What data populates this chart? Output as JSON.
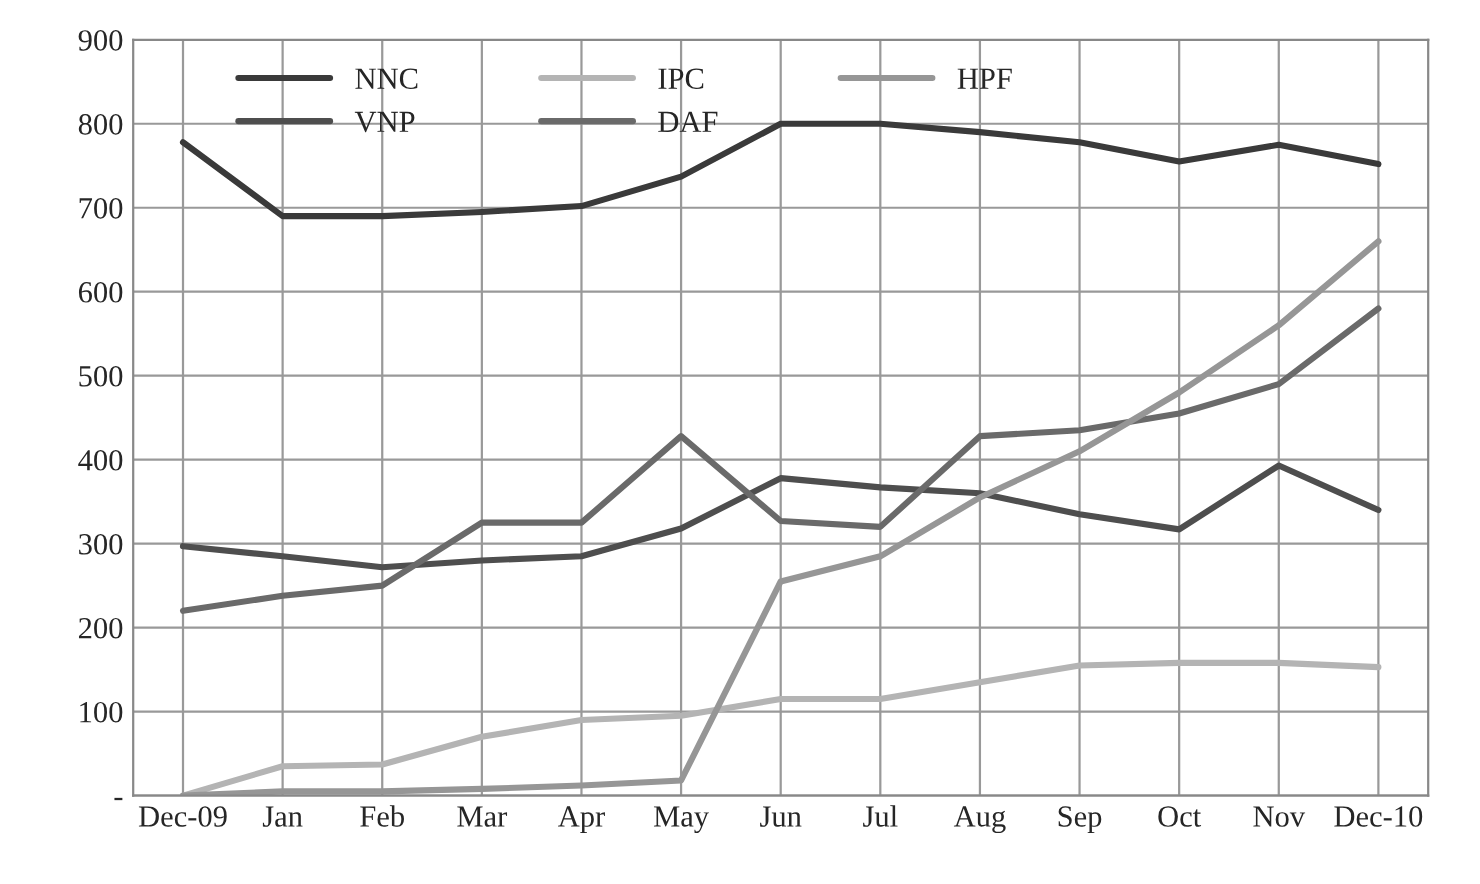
{
  "chart_data": {
    "type": "line",
    "categories": [
      "Dec-09",
      "Jan",
      "Feb",
      "Mar",
      "Apr",
      "May",
      "Jun",
      "Jul",
      "Aug",
      "Sep",
      "Oct",
      "Nov",
      "Dec-10"
    ],
    "series": [
      {
        "name": "NNC",
        "color": "#3a3a3a",
        "values": [
          778,
          690,
          690,
          695,
          702,
          737,
          800,
          800,
          790,
          778,
          755,
          775,
          752
        ]
      },
      {
        "name": "VNP",
        "color": "#4e4e4e",
        "values": [
          297,
          285,
          272,
          280,
          285,
          318,
          378,
          367,
          360,
          335,
          317,
          393,
          340
        ]
      },
      {
        "name": "IPC",
        "color": "#b4b4b4",
        "values": [
          0,
          35,
          37,
          70,
          90,
          95,
          115,
          115,
          135,
          155,
          158,
          158,
          153
        ]
      },
      {
        "name": "DAF",
        "color": "#6a6a6a",
        "values": [
          220,
          238,
          250,
          325,
          325,
          428,
          327,
          320,
          428,
          435,
          455,
          490,
          580
        ]
      },
      {
        "name": "HPF",
        "color": "#969696",
        "values": [
          0,
          5,
          5,
          8,
          12,
          18,
          255,
          285,
          355,
          410,
          480,
          560,
          660
        ]
      }
    ],
    "ylim": [
      0,
      900
    ],
    "yticks": [
      {
        "value": 0,
        "label": "-"
      },
      100,
      200,
      300,
      400,
      500,
      600,
      700,
      800,
      900
    ],
    "grid": true,
    "legend": "top left",
    "marker": "none",
    "line_style": "solid"
  }
}
